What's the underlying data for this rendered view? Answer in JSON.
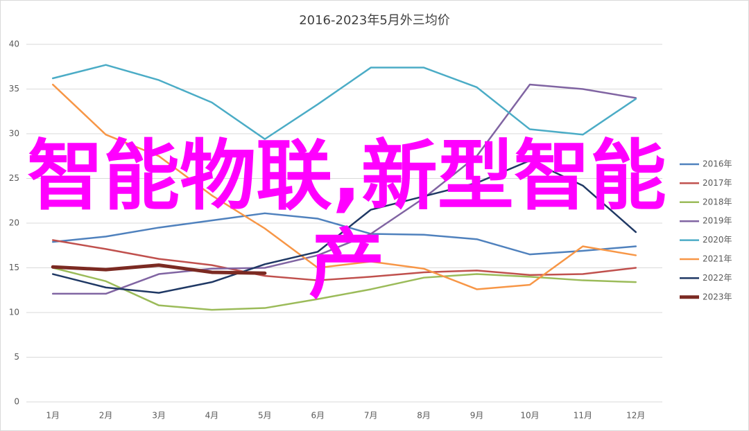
{
  "chart_data": {
    "type": "line",
    "title": "2016-2023年5月外三均价",
    "categories": [
      "1月",
      "2月",
      "3月",
      "4月",
      "5月",
      "6月",
      "7月",
      "8月",
      "9月",
      "10月",
      "11月",
      "12月"
    ],
    "ylim": [
      0,
      40
    ],
    "yticks": [
      0,
      5,
      10,
      15,
      20,
      25,
      30,
      35,
      40
    ],
    "grid": true,
    "legend": "right",
    "series": [
      {
        "name": "2016年",
        "color": "#4f81bd",
        "values": [
          17.9,
          18.5,
          19.5,
          20.3,
          21.1,
          20.5,
          18.8,
          18.7,
          18.2,
          16.5,
          16.9,
          17.4
        ]
      },
      {
        "name": "2017年",
        "color": "#c0504d",
        "values": [
          18.1,
          17.1,
          16.0,
          15.3,
          14.1,
          13.6,
          14.0,
          14.5,
          14.7,
          14.2,
          14.3,
          15.0
        ]
      },
      {
        "name": "2018年",
        "color": "#9bbb59",
        "values": [
          15.0,
          13.5,
          10.8,
          10.3,
          10.5,
          11.5,
          12.6,
          13.9,
          14.3,
          14.0,
          13.6,
          13.4
        ]
      },
      {
        "name": "2019年",
        "color": "#8064a2",
        "values": [
          12.1,
          12.1,
          14.3,
          14.9,
          15.0,
          16.4,
          18.8,
          22.8,
          27.5,
          35.5,
          35.0,
          34.0
        ]
      },
      {
        "name": "2020年",
        "color": "#4bacc6",
        "values": [
          36.2,
          37.7,
          36.0,
          33.5,
          29.4,
          33.3,
          37.4,
          37.4,
          35.2,
          30.5,
          29.9,
          33.9
        ]
      },
      {
        "name": "2021年",
        "color": "#f79646",
        "values": [
          35.5,
          29.9,
          27.5,
          23.1,
          19.4,
          15.0,
          15.7,
          14.9,
          12.6,
          13.1,
          17.4,
          16.4
        ]
      },
      {
        "name": "2022年",
        "color": "#1f3864",
        "values": [
          14.3,
          12.8,
          12.2,
          13.4,
          15.4,
          16.8,
          21.5,
          23.0,
          24.5,
          27.0,
          24.2,
          19.0
        ]
      },
      {
        "name": "2023年",
        "color": "#7b2a22",
        "values": [
          15.1,
          14.8,
          15.3,
          14.5,
          14.4,
          null,
          null,
          null,
          null,
          null,
          null,
          null
        ]
      }
    ]
  },
  "overlay_text": "智能物联,新型智能产"
}
